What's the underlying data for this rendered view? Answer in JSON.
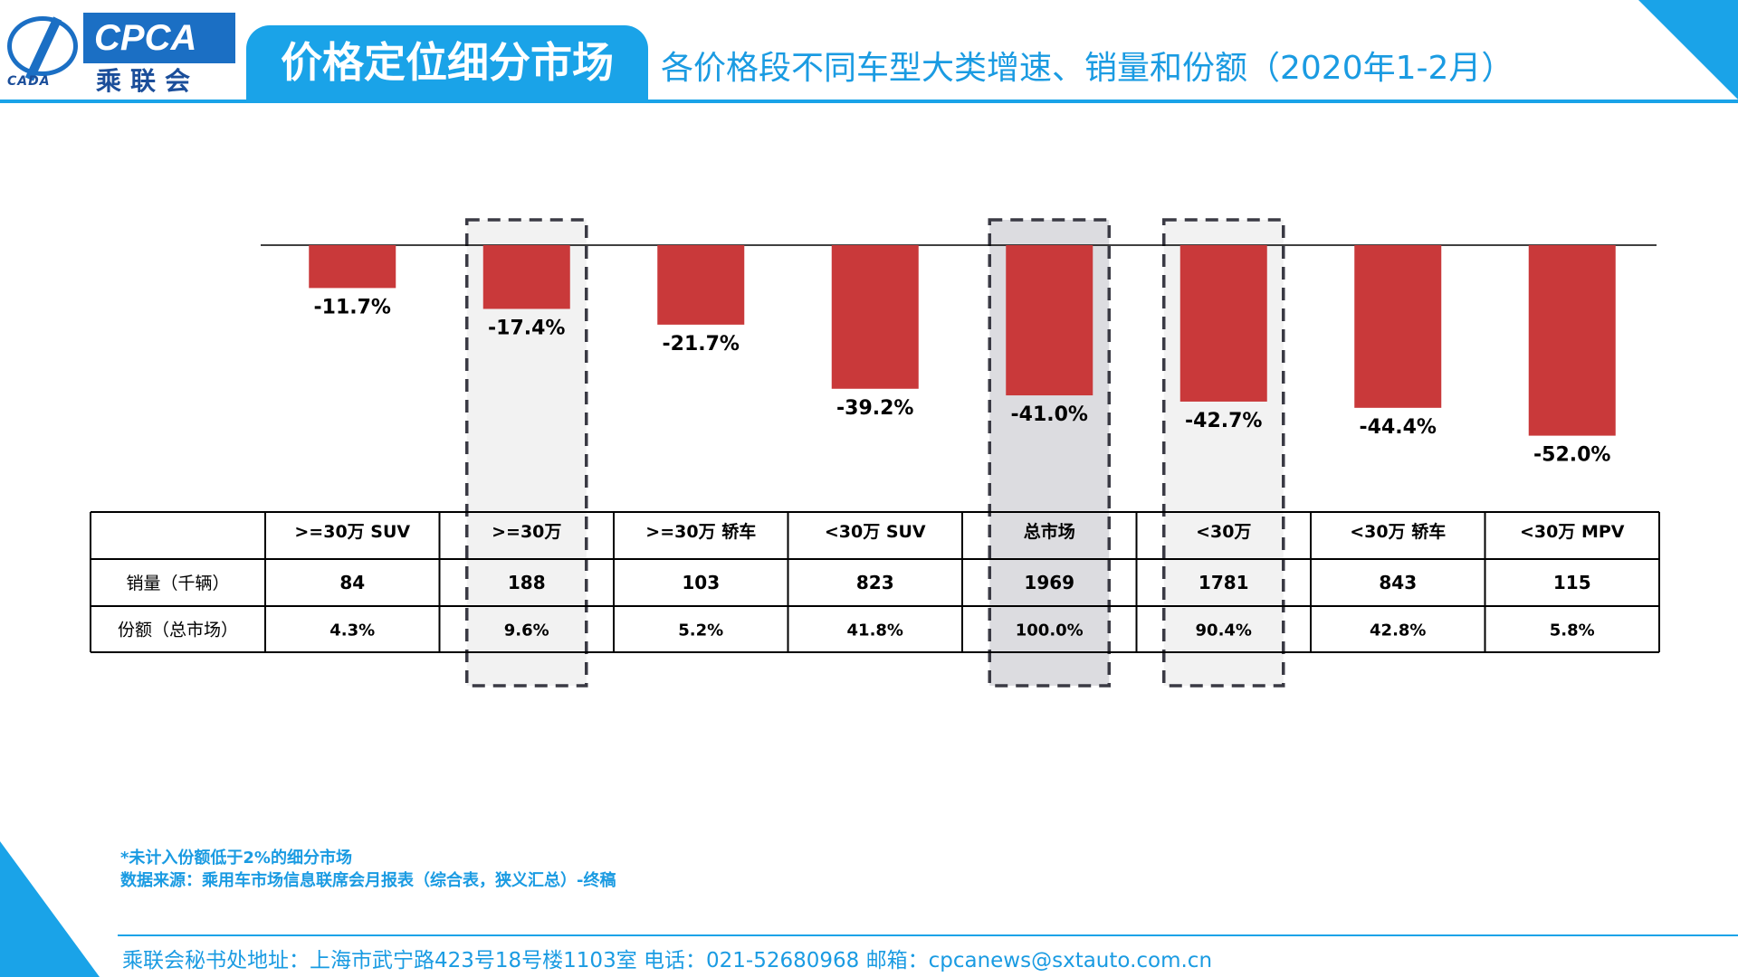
{
  "header": {
    "logo_text": "CPCA",
    "logo_cn": "乘联会",
    "logo_sub": "CADA",
    "title": "价格定位细分市场",
    "subtitle": "各价格段不同车型大类增速、销量和份额（2020年1-2月）"
  },
  "colors": {
    "accent": "#1aa3e8",
    "bar": "#c9393a",
    "highlight_light": "#f2f2f2",
    "highlight_dark": "#dcdce0"
  },
  "chart_data": {
    "type": "bar",
    "categories": [
      ">=30万 SUV",
      ">=30万",
      ">=30万 轿车",
      "<30万 SUV",
      "总市场",
      "<30万",
      "<30万 轿车",
      "<30万 MPV"
    ],
    "values": [
      -11.7,
      -17.4,
      -21.7,
      -39.2,
      -41.0,
      -42.7,
      -44.4,
      -52.0
    ],
    "value_labels": [
      "-11.7%",
      "-17.4%",
      "-21.7%",
      "-39.2%",
      "-41.0%",
      "-42.7%",
      "-44.4%",
      "-52.0%"
    ],
    "highlighted": [
      1,
      4,
      5
    ],
    "highlight_shade": [
      "light",
      "dark",
      "light"
    ]
  },
  "table": {
    "header_row": [
      ">=30万 SUV",
      ">=30万",
      ">=30万 轿车",
      "<30万 SUV",
      "总市场",
      "<30万",
      "<30万 轿车",
      "<30万 MPV"
    ],
    "rows": [
      {
        "label": "销量（千辆）",
        "values": [
          "84",
          "188",
          "103",
          "823",
          "1969",
          "1781",
          "843",
          "115"
        ]
      },
      {
        "label": "份额（总市场）",
        "values": [
          "4.3%",
          "9.6%",
          "5.2%",
          "41.8%",
          "100.0%",
          "90.4%",
          "42.8%",
          "5.8%"
        ]
      }
    ]
  },
  "notes": {
    "line1": "*未计入份额低于2%的细分市场",
    "line2": "数据来源：乘用车市场信息联席会月报表（综合表，狭义汇总）-终稿"
  },
  "footer": "乘联会秘书处地址：上海市武宁路423号18号楼1103室   电话：021-52680968   邮箱：cpcanews@sxtauto.com.cn"
}
